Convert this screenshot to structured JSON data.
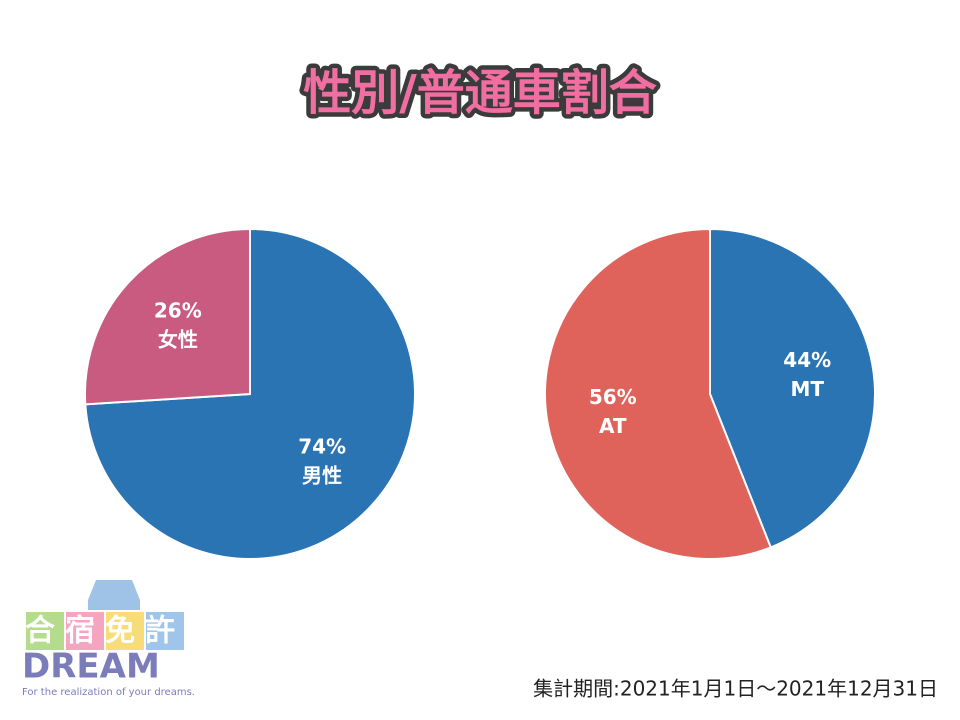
{
  "title": "性別/普通車割合",
  "note": "集計期間:2021年1月1日～2021年12月31日",
  "logo": {
    "name": "合宿免許",
    "brand": "DREAM",
    "tagline": "For the realization of your dreams."
  },
  "chart_data": [
    {
      "type": "pie",
      "categories": [
        "男性",
        "女性"
      ],
      "values": [
        74,
        26
      ],
      "value_labels": [
        "74%",
        "26%"
      ],
      "colors": [
        "#2a74b3",
        "#c95a80"
      ]
    },
    {
      "type": "pie",
      "categories": [
        "MT",
        "AT"
      ],
      "values": [
        44,
        56
      ],
      "value_labels": [
        "44%",
        "56%"
      ],
      "colors": [
        "#2a74b3",
        "#e0635b"
      ]
    }
  ]
}
